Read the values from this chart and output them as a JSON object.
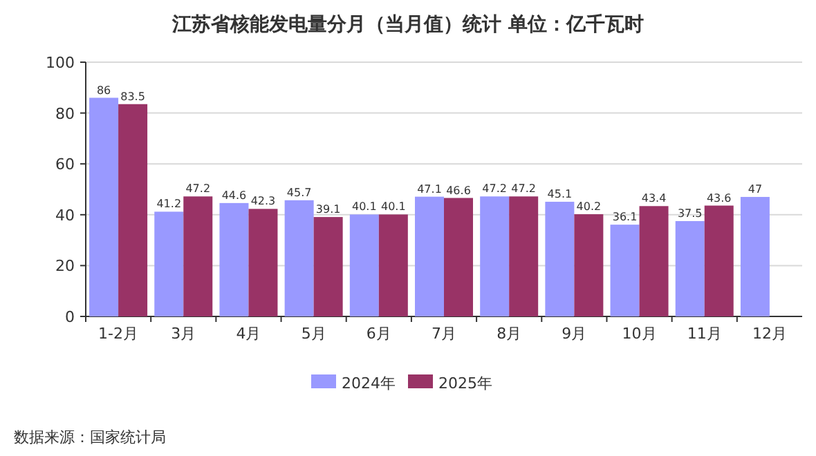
{
  "chart_data": {
    "type": "bar",
    "title": "江苏省核能发电量分月（当月值）统计 单位：亿千瓦时",
    "categories": [
      "1-2月",
      "3月",
      "4月",
      "5月",
      "6月",
      "7月",
      "8月",
      "9月",
      "10月",
      "11月",
      "12月"
    ],
    "series": [
      {
        "name": "2024年",
        "color": "#9999ff",
        "values": [
          86,
          41.2,
          44.6,
          45.7,
          40.1,
          47.1,
          47.2,
          45.1,
          36.1,
          37.5,
          47
        ]
      },
      {
        "name": "2025年",
        "color": "#993366",
        "values": [
          83.5,
          47.2,
          42.3,
          39.1,
          40.1,
          46.6,
          47.2,
          40.2,
          43.4,
          43.6,
          null
        ]
      }
    ],
    "ylim": [
      0,
      100
    ],
    "yticks": [
      0,
      20,
      40,
      60,
      80,
      100
    ],
    "grid": "y",
    "legend": "bottom",
    "data_labels": true,
    "annotations": [
      "数据来源：国家统计局"
    ]
  }
}
